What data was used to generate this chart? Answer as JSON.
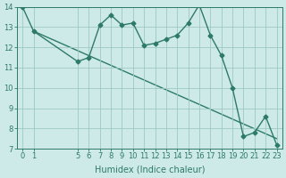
{
  "x": [
    0,
    1,
    5,
    6,
    7,
    8,
    9,
    10,
    11,
    12,
    13,
    14,
    15,
    16,
    17,
    18,
    19,
    20,
    21,
    22,
    23
  ],
  "y": [
    14.0,
    12.8,
    11.3,
    11.5,
    13.1,
    13.6,
    13.1,
    13.2,
    12.1,
    12.2,
    12.4,
    12.6,
    13.2,
    14.1,
    12.6,
    11.6,
    10.0,
    7.6,
    7.8,
    8.6,
    7.2
  ],
  "trend_x": [
    1,
    23
  ],
  "trend_y": [
    12.8,
    7.5
  ],
  "line_color": "#2d7a6a",
  "bg_color": "#ceeae8",
  "grid_color": "#9dc8c4",
  "xlabel": "Humidex (Indice chaleur)",
  "ylim": [
    7,
    14
  ],
  "xlim": [
    -0.5,
    23.5
  ],
  "yticks": [
    7,
    8,
    9,
    10,
    11,
    12,
    13,
    14
  ],
  "xticks": [
    0,
    1,
    5,
    6,
    7,
    8,
    9,
    10,
    11,
    12,
    13,
    14,
    15,
    16,
    17,
    18,
    19,
    20,
    21,
    22,
    23
  ],
  "marker": "D",
  "marker_size": 2.5,
  "line_width": 1.0,
  "xlabel_fontsize": 7,
  "tick_fontsize": 6
}
